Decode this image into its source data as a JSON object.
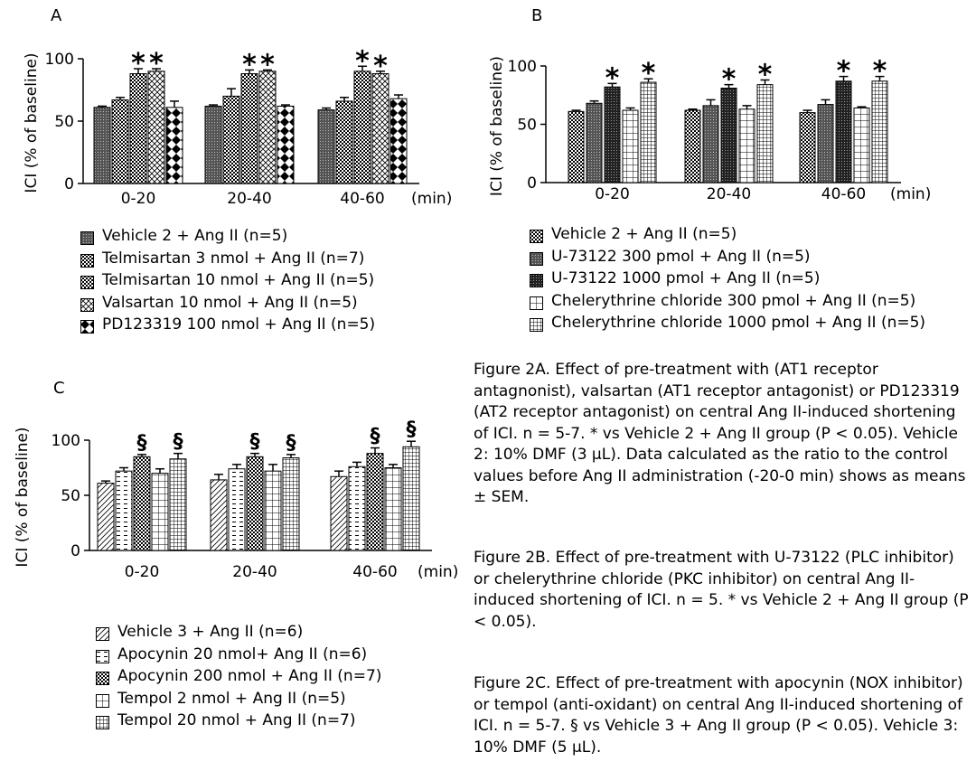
{
  "panels": {
    "A": {
      "letter": "A",
      "legend": [
        "Vehicle 2 + Ang II (n=5)",
        "Telmisartan 3 nmol + Ang II (n=7)",
        "Telmisartan 10 nmol + Ang II (n=5)",
        "Valsartan 10 nmol + Ang II (n=5)",
        "PD123319 100 nmol + Ang II (n=5)"
      ]
    },
    "B": {
      "letter": "B",
      "legend": [
        "Vehicle 2 + Ang II (n=5)",
        "U-73122 300 pmol + Ang II (n=5)",
        "U-73122 1000 pmol + Ang II (n=5)",
        "Chelerythrine chloride  300 pmol + Ang II (n=5)",
        "Chelerythrine chloride 1000 pmol + Ang II (n=5)"
      ]
    },
    "C": {
      "letter": "C",
      "legend": [
        "Vehicle 3 + Ang II (n=6)",
        "Apocynin 20 nmol+ Ang II (n=6)",
        "Apocynin 200 nmol + Ang II (n=7)",
        "Tempol 2 nmol + Ang II (n=5)",
        "Tempol 20 nmol + Ang II (n=7)"
      ]
    }
  },
  "captions": {
    "fig2a": "Figure 2A. Effect of pre-treatment with (AT1 receptor antagnonist), valsartan (AT1 receptor antagonist) or PD123319 (AT2 receptor antagonist) on central Ang II-induced shortening of ICI. n = 5-7. * vs Vehicle 2 + Ang II group (P < 0.05). Vehicle 2: 10% DMF (3 μL). Data calculated as the ratio to the control values before Ang II administration (-20-0 min) shows as means ± SEM.",
    "fig2b": "Figure 2B. Effect of pre-treatment with U-73122 (PLC inhibitor) or chelerythrine chloride (PKC inhibitor) on central Ang II-induced shortening of ICI.  n = 5. * vs Vehicle 2 + Ang II group (P < 0.05).",
    "fig2c": "Figure 2C. Effect of pre-treatment with apocynin (NOX inhibitor) or tempol (anti-oxidant) on central Ang II-induced shortening of ICI.  n = 5-7. § vs Vehicle 3 + Ang II group (P < 0.05). Vehicle 3: 10% DMF (5 μL)."
  },
  "chart_data": [
    {
      "panel": "A",
      "type": "bar",
      "categories": [
        "0-20",
        "20-40",
        "40-60"
      ],
      "xunit": "(min)",
      "ylabel": "ICI (% of baseline)",
      "ylim": [
        0,
        100
      ],
      "yticks": [
        0,
        50,
        100
      ],
      "series": [
        {
          "name": "Vehicle 2 + Ang II (n=5)",
          "pattern": "dense-dot",
          "values": [
            61,
            62,
            59
          ],
          "errors": [
            1,
            1,
            1.5
          ],
          "sig": [
            "",
            "",
            ""
          ]
        },
        {
          "name": "Telmisartan 3 nmol + Ang II (n=7)",
          "pattern": "mid-dot",
          "values": [
            67,
            70,
            66
          ],
          "errors": [
            2,
            6,
            3
          ],
          "sig": [
            "",
            "",
            ""
          ]
        },
        {
          "name": "Telmisartan 10 nmol + Ang II (n=5)",
          "pattern": "mid-dot",
          "values": [
            88,
            88,
            90
          ],
          "errors": [
            4,
            3,
            4
          ],
          "sig": [
            "*",
            "*",
            "*"
          ]
        },
        {
          "name": "Valsartan 10 nmol + Ang II (n=5)",
          "pattern": "crosshatch",
          "values": [
            90,
            90,
            88
          ],
          "errors": [
            2,
            1,
            2
          ],
          "sig": [
            "*",
            "*",
            "*"
          ]
        },
        {
          "name": "PD123319 100 nmol + Ang II (n=5)",
          "pattern": "diamond",
          "values": [
            61,
            62,
            68
          ],
          "errors": [
            5,
            1,
            3
          ],
          "sig": [
            "",
            "",
            ""
          ]
        }
      ]
    },
    {
      "panel": "B",
      "type": "bar",
      "categories": [
        "0-20",
        "20-40",
        "40-60"
      ],
      "xunit": "(min)",
      "ylabel": "ICI (% of baseline)",
      "ylim": [
        0,
        100
      ],
      "yticks": [
        0,
        50,
        100
      ],
      "series": [
        {
          "name": "Vehicle 2 + Ang II (n=5)",
          "pattern": "mid-dot",
          "values": [
            61,
            62,
            60
          ],
          "errors": [
            1,
            1,
            2
          ],
          "sig": [
            "",
            "",
            ""
          ]
        },
        {
          "name": "U-73122 300 pmol + Ang II (n=5)",
          "pattern": "dense-dot",
          "values": [
            68,
            66,
            67
          ],
          "errors": [
            2,
            5,
            4
          ],
          "sig": [
            "",
            "",
            ""
          ]
        },
        {
          "name": "U-73122 1000 pmol + Ang II (n=5)",
          "pattern": "dark-dot",
          "values": [
            82,
            81,
            87
          ],
          "errors": [
            3,
            3,
            4
          ],
          "sig": [
            "*",
            "*",
            "*"
          ]
        },
        {
          "name": "Chelerythrine chloride  300 pmol + Ang II (n=5)",
          "pattern": "grid",
          "values": [
            62,
            63,
            64
          ],
          "errors": [
            2,
            3,
            1
          ],
          "sig": [
            "",
            "",
            ""
          ]
        },
        {
          "name": "Chelerythrine chloride 1000 pmol + Ang II (n=5)",
          "pattern": "dense-grid",
          "values": [
            86,
            84,
            87
          ],
          "errors": [
            3,
            4,
            4
          ],
          "sig": [
            "*",
            "*",
            "*"
          ]
        }
      ]
    },
    {
      "panel": "C",
      "type": "bar",
      "categories": [
        "0-20",
        "20-40",
        "40-60"
      ],
      "xunit": "(min)",
      "ylabel": "ICI (% of baseline)",
      "ylim": [
        0,
        100
      ],
      "yticks": [
        0,
        50,
        100
      ],
      "series": [
        {
          "name": "Vehicle 3 + Ang II (n=6)",
          "pattern": "diag",
          "values": [
            61,
            64,
            67
          ],
          "errors": [
            2,
            5,
            5
          ],
          "sig": [
            "",
            "",
            ""
          ]
        },
        {
          "name": "Apocynin 20 nmol+ Ang II (n=6)",
          "pattern": "dash",
          "values": [
            72,
            74,
            76
          ],
          "errors": [
            3,
            4,
            4
          ],
          "sig": [
            "",
            "",
            ""
          ]
        },
        {
          "name": "Apocynin 200 nmol + Ang II (n=7)",
          "pattern": "mid-dot",
          "values": [
            85,
            85,
            88
          ],
          "errors": [
            2,
            3,
            5
          ],
          "sig": [
            "§",
            "§",
            "§"
          ]
        },
        {
          "name": "Tempol 2 nmol + Ang II (n=5)",
          "pattern": "grid",
          "values": [
            70,
            72,
            75
          ],
          "errors": [
            4,
            6,
            3
          ],
          "sig": [
            "",
            "",
            ""
          ]
        },
        {
          "name": "Tempol 20 nmol + Ang II (n=7)",
          "pattern": "dense-grid",
          "values": [
            83,
            84,
            94
          ],
          "errors": [
            5,
            3,
            5
          ],
          "sig": [
            "§",
            "§",
            "§"
          ]
        }
      ]
    }
  ]
}
